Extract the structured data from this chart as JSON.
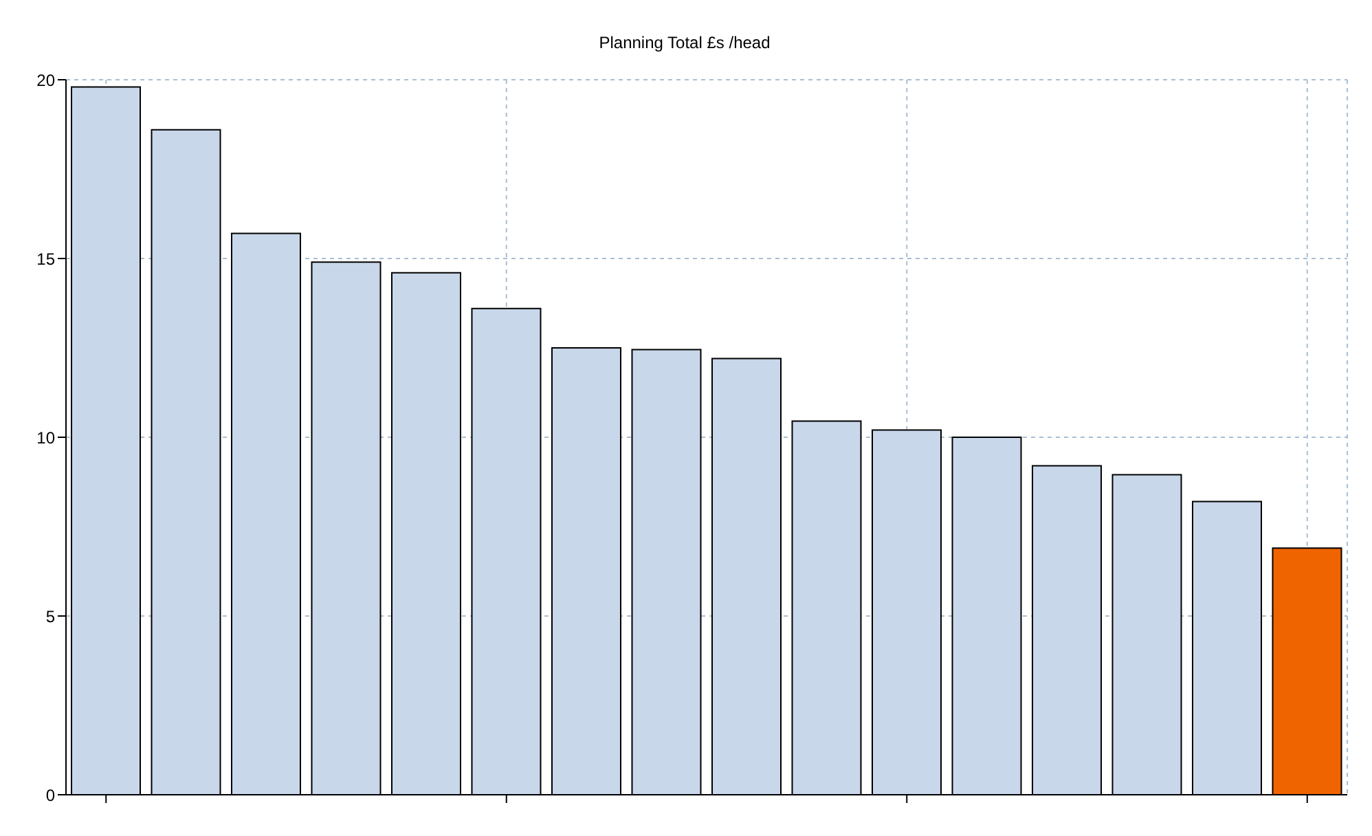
{
  "chart_data": {
    "type": "bar",
    "title": "Planning Total £s /head",
    "categories": [
      null,
      null,
      null,
      null,
      null,
      null,
      null,
      null,
      null,
      null,
      null,
      null,
      null,
      null,
      null,
      null
    ],
    "values": [
      19.8,
      18.6,
      15.7,
      14.9,
      14.6,
      13.6,
      12.5,
      12.45,
      12.2,
      10.45,
      10.2,
      10.0,
      9.2,
      8.95,
      8.2,
      6.9
    ],
    "colors": [
      "#c8d7ea",
      "#c8d7ea",
      "#c8d7ea",
      "#c8d7ea",
      "#c8d7ea",
      "#c8d7ea",
      "#c8d7ea",
      "#c8d7ea",
      "#c8d7ea",
      "#c8d7ea",
      "#c8d7ea",
      "#c8d7ea",
      "#c8d7ea",
      "#c8d7ea",
      "#c8d7ea",
      "#f06400"
    ],
    "ylim": [
      0,
      20
    ],
    "yticks": [
      0,
      5,
      10,
      15,
      20
    ],
    "grid": true,
    "tick_labels": "y"
  }
}
